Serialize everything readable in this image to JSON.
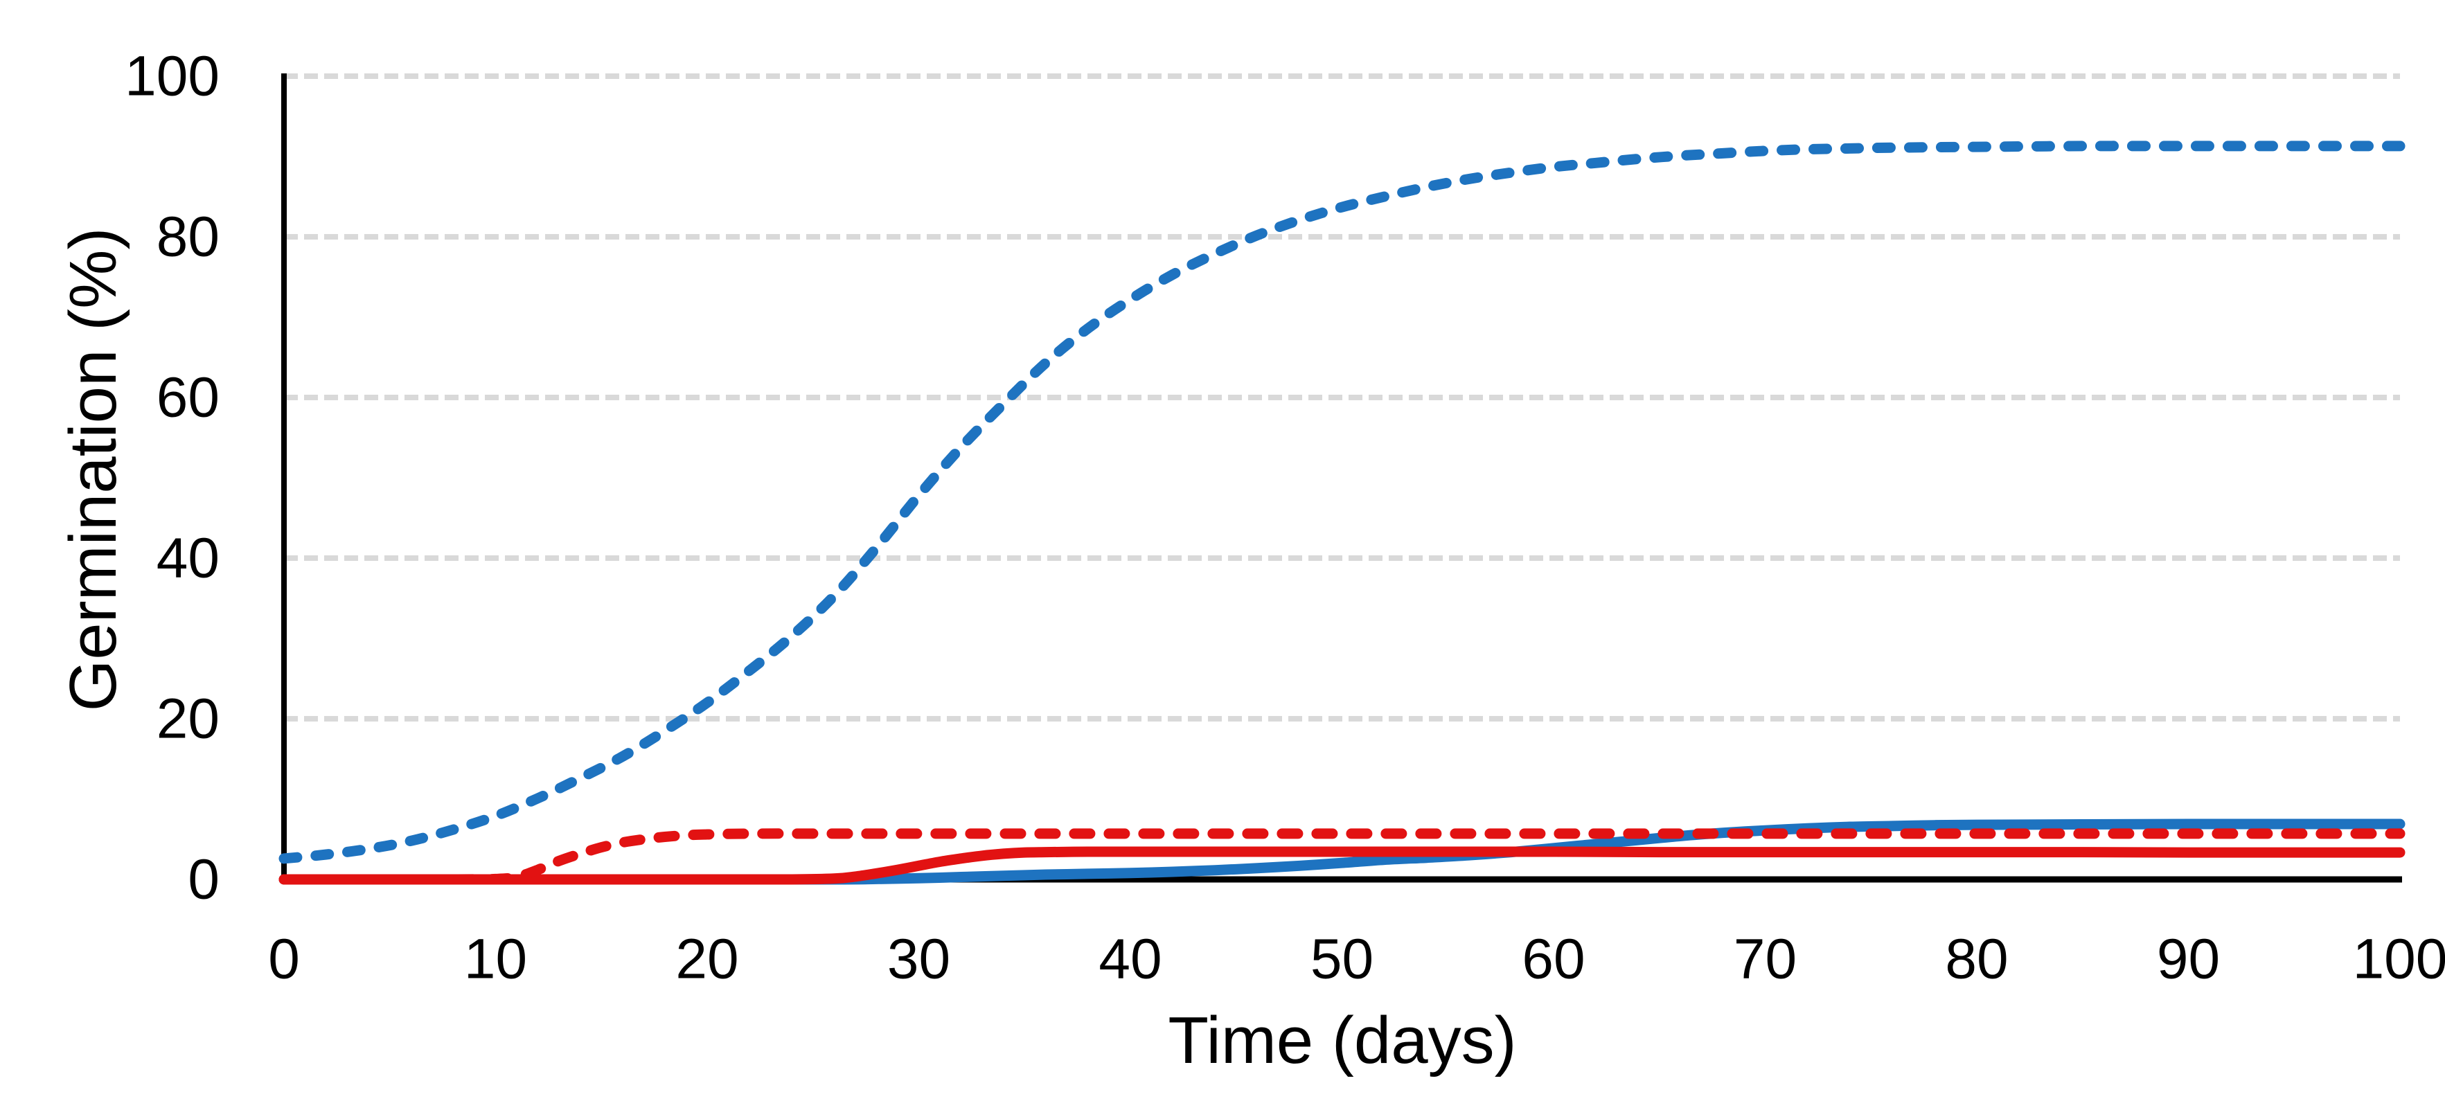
{
  "figure": {
    "background": "#FFFFFF"
  },
  "chart_data": {
    "type": "line",
    "title": "",
    "xlabel": "Time (days)",
    "ylabel": "Germination (%)",
    "xlim": [
      0,
      100
    ],
    "ylim": [
      0,
      100
    ],
    "x_ticks": [
      0,
      10,
      20,
      30,
      40,
      50,
      60,
      70,
      80,
      90,
      100
    ],
    "y_ticks": [
      0,
      20,
      40,
      60,
      80,
      100
    ],
    "grid": "horizontal-dashed",
    "legend": "none",
    "colors": {
      "blue": "#1E73C0",
      "red": "#E21212",
      "grid": "#D9D9D9",
      "axis": "#000000",
      "text": "#000000"
    },
    "series": [
      {
        "name": "blue-dashed",
        "color": "#1E73C0",
        "style": "dashed",
        "points": [
          [
            0,
            2.6
          ],
          [
            2,
            3.1
          ],
          [
            4,
            3.8
          ],
          [
            6,
            4.8
          ],
          [
            8,
            6.2
          ],
          [
            10,
            7.9
          ],
          [
            12,
            10.1
          ],
          [
            14,
            12.6
          ],
          [
            16,
            15.3
          ],
          [
            18,
            18.5
          ],
          [
            20,
            22.0
          ],
          [
            22,
            26.0
          ],
          [
            24,
            30.3
          ],
          [
            26,
            35.3
          ],
          [
            28,
            41.3
          ],
          [
            30,
            47.8
          ],
          [
            32,
            53.8
          ],
          [
            34,
            59.2
          ],
          [
            36,
            64.3
          ],
          [
            38,
            68.6
          ],
          [
            40,
            72.2
          ],
          [
            42,
            75.3
          ],
          [
            44,
            77.9
          ],
          [
            46,
            80.2
          ],
          [
            48,
            82.1
          ],
          [
            50,
            83.7
          ],
          [
            52,
            85.0
          ],
          [
            54,
            86.2
          ],
          [
            56,
            87.2
          ],
          [
            58,
            88.0
          ],
          [
            60,
            88.7
          ],
          [
            62,
            89.2
          ],
          [
            64,
            89.7
          ],
          [
            66,
            90.1
          ],
          [
            68,
            90.4
          ],
          [
            70,
            90.7
          ],
          [
            72,
            90.9
          ],
          [
            74,
            91.0
          ],
          [
            76,
            91.1
          ],
          [
            80,
            91.2
          ],
          [
            85,
            91.3
          ],
          [
            90,
            91.3
          ],
          [
            95,
            91.3
          ],
          [
            100,
            91.3
          ]
        ]
      },
      {
        "name": "blue-solid",
        "color": "#1E73C0",
        "style": "solid",
        "points": [
          [
            0,
            0
          ],
          [
            10,
            0
          ],
          [
            20,
            0
          ],
          [
            26,
            0
          ],
          [
            28,
            0.05
          ],
          [
            30,
            0.15
          ],
          [
            32,
            0.3
          ],
          [
            34,
            0.45
          ],
          [
            36,
            0.6
          ],
          [
            38,
            0.7
          ],
          [
            40,
            0.8
          ],
          [
            42,
            0.95
          ],
          [
            44,
            1.15
          ],
          [
            46,
            1.4
          ],
          [
            48,
            1.7
          ],
          [
            50,
            2.05
          ],
          [
            52,
            2.45
          ],
          [
            54,
            2.7
          ],
          [
            56,
            3.0
          ],
          [
            58,
            3.4
          ],
          [
            60,
            3.9
          ],
          [
            62,
            4.4
          ],
          [
            64,
            4.9
          ],
          [
            66,
            5.4
          ],
          [
            68,
            5.8
          ],
          [
            70,
            6.1
          ],
          [
            72,
            6.35
          ],
          [
            74,
            6.55
          ],
          [
            76,
            6.65
          ],
          [
            78,
            6.75
          ],
          [
            80,
            6.8
          ],
          [
            85,
            6.85
          ],
          [
            90,
            6.9
          ],
          [
            95,
            6.9
          ],
          [
            100,
            6.9
          ]
        ]
      },
      {
        "name": "red-solid",
        "color": "#E21212",
        "style": "solid",
        "points": [
          [
            0,
            0
          ],
          [
            5,
            0
          ],
          [
            10,
            0
          ],
          [
            15,
            0
          ],
          [
            20,
            0
          ],
          [
            24,
            0
          ],
          [
            26,
            0.1
          ],
          [
            27,
            0.35
          ],
          [
            28,
            0.75
          ],
          [
            29,
            1.2
          ],
          [
            30,
            1.7
          ],
          [
            31,
            2.2
          ],
          [
            32,
            2.6
          ],
          [
            33,
            2.95
          ],
          [
            34,
            3.2
          ],
          [
            35,
            3.35
          ],
          [
            36,
            3.4
          ],
          [
            38,
            3.45
          ],
          [
            40,
            3.45
          ],
          [
            45,
            3.45
          ],
          [
            50,
            3.45
          ],
          [
            55,
            3.45
          ],
          [
            60,
            3.45
          ],
          [
            65,
            3.4
          ],
          [
            70,
            3.4
          ],
          [
            75,
            3.4
          ],
          [
            80,
            3.4
          ],
          [
            85,
            3.4
          ],
          [
            90,
            3.35
          ],
          [
            95,
            3.35
          ],
          [
            100,
            3.35
          ]
        ]
      },
      {
        "name": "red-dashed",
        "color": "#E21212",
        "style": "dashed",
        "points": [
          [
            0,
            0
          ],
          [
            4,
            0
          ],
          [
            8,
            0
          ],
          [
            10,
            0.05
          ],
          [
            11,
            0.3
          ],
          [
            12,
            1.2
          ],
          [
            13,
            2.3
          ],
          [
            14,
            3.2
          ],
          [
            15,
            4.0
          ],
          [
            16,
            4.6
          ],
          [
            17,
            5.0
          ],
          [
            18,
            5.3
          ],
          [
            19,
            5.5
          ],
          [
            20,
            5.6
          ],
          [
            22,
            5.7
          ],
          [
            26,
            5.7
          ],
          [
            30,
            5.7
          ],
          [
            35,
            5.7
          ],
          [
            40,
            5.7
          ],
          [
            45,
            5.7
          ],
          [
            50,
            5.7
          ],
          [
            55,
            5.7
          ],
          [
            60,
            5.7
          ],
          [
            65,
            5.7
          ],
          [
            70,
            5.7
          ],
          [
            75,
            5.7
          ],
          [
            80,
            5.7
          ],
          [
            85,
            5.7
          ],
          [
            90,
            5.7
          ],
          [
            95,
            5.7
          ],
          [
            100,
            5.7
          ]
        ]
      }
    ]
  }
}
